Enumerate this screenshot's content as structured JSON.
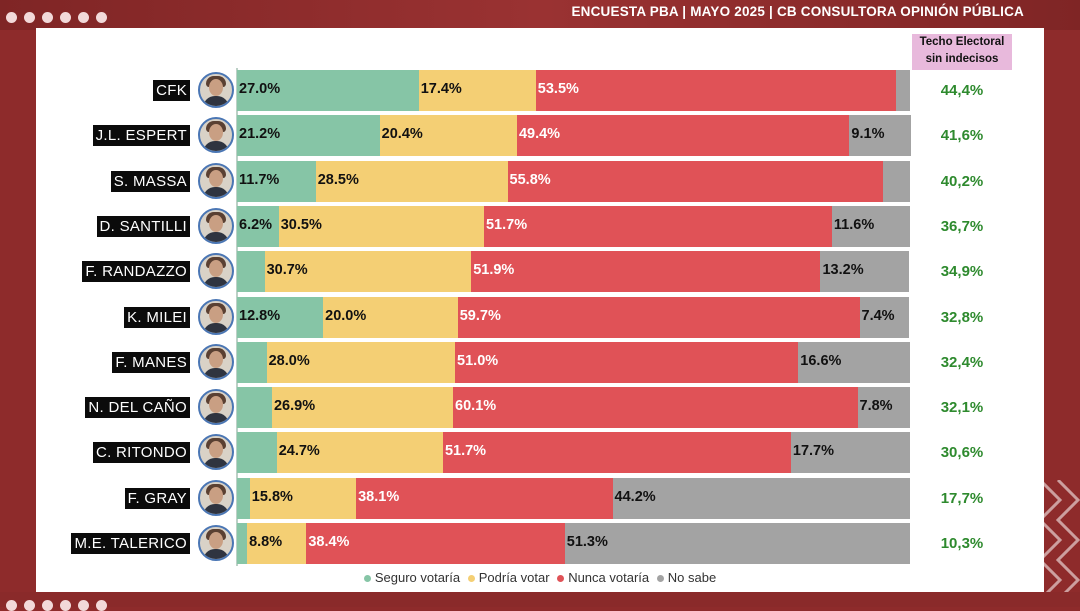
{
  "header": {
    "text": "ENCUESTA PBA | MAYO 2025 | CB CONSULTORA OPINIÓN PÚBLICA"
  },
  "ceiling_header": {
    "line1": "Techo Electoral",
    "line2": "sin indecisos"
  },
  "colors": {
    "seguro": "#86c5a6",
    "podria": "#f4cf74",
    "nunca": "#e05257",
    "nosabe": "#a3a3a3",
    "ceiling_text": "#2e8a2e",
    "background": "#8e2b2b"
  },
  "chart_data": {
    "type": "bar",
    "orientation": "horizontal",
    "stacked": true,
    "xlim": [
      0,
      100
    ],
    "legend_position": "bottom",
    "legend": [
      "Seguro votaría",
      "Podría votar",
      "Nunca votaría",
      "No sabe"
    ],
    "categories": [
      "CFK",
      "J.L. ESPERT",
      "S. MASSA",
      "D. SANTILLI",
      "F. RANDAZZO",
      "K. MILEI",
      "F. MANES",
      "N. DEL CAÑO",
      "C. RITONDO",
      "F. GRAY",
      "M.E.  TALERICO"
    ],
    "series": [
      {
        "name": "Seguro votaría",
        "values": [
          27.0,
          21.2,
          11.7,
          6.2,
          4.1,
          12.8,
          4.4,
          5.2,
          5.9,
          1.9,
          1.5
        ]
      },
      {
        "name": "Podría votar",
        "values": [
          17.4,
          20.4,
          28.5,
          30.5,
          30.7,
          20.0,
          28.0,
          26.9,
          24.7,
          15.8,
          8.8
        ]
      },
      {
        "name": "Nunca votaría",
        "values": [
          53.5,
          49.4,
          55.8,
          51.7,
          51.9,
          59.7,
          51.0,
          60.1,
          51.7,
          38.1,
          38.4
        ]
      },
      {
        "name": "No sabe",
        "values": [
          2.1,
          9.1,
          4.0,
          11.6,
          13.2,
          7.4,
          16.6,
          7.8,
          17.7,
          44.2,
          51.3
        ]
      }
    ],
    "data_labels": [
      [
        "27.0%",
        "17.4%",
        "53.5%",
        ""
      ],
      [
        "21.2%",
        "20.4%",
        "49.4%",
        "9.1%"
      ],
      [
        "11.7%",
        "28.5%",
        "55.8%",
        ""
      ],
      [
        "6.2%",
        "30.5%",
        "51.7%",
        "11.6%"
      ],
      [
        "",
        "30.7%",
        "51.9%",
        "13.2%"
      ],
      [
        "12.8%",
        "20.0%",
        "59.7%",
        "7.4%"
      ],
      [
        "",
        "28.0%",
        "51.0%",
        "16.6%"
      ],
      [
        "",
        "26.9%",
        "60.1%",
        "7.8%"
      ],
      [
        "",
        "24.7%",
        "51.7%",
        "17.7%"
      ],
      [
        "",
        "15.8%",
        "38.1%",
        "44.2%"
      ],
      [
        "",
        "8.8%",
        "38.4%",
        "51.3%"
      ]
    ],
    "ceiling": [
      "44,4%",
      "41,6%",
      "40,2%",
      "36,7%",
      "34,9%",
      "32,8%",
      "32,4%",
      "32,1%",
      "30,6%",
      "17,7%",
      "10,3%"
    ]
  }
}
